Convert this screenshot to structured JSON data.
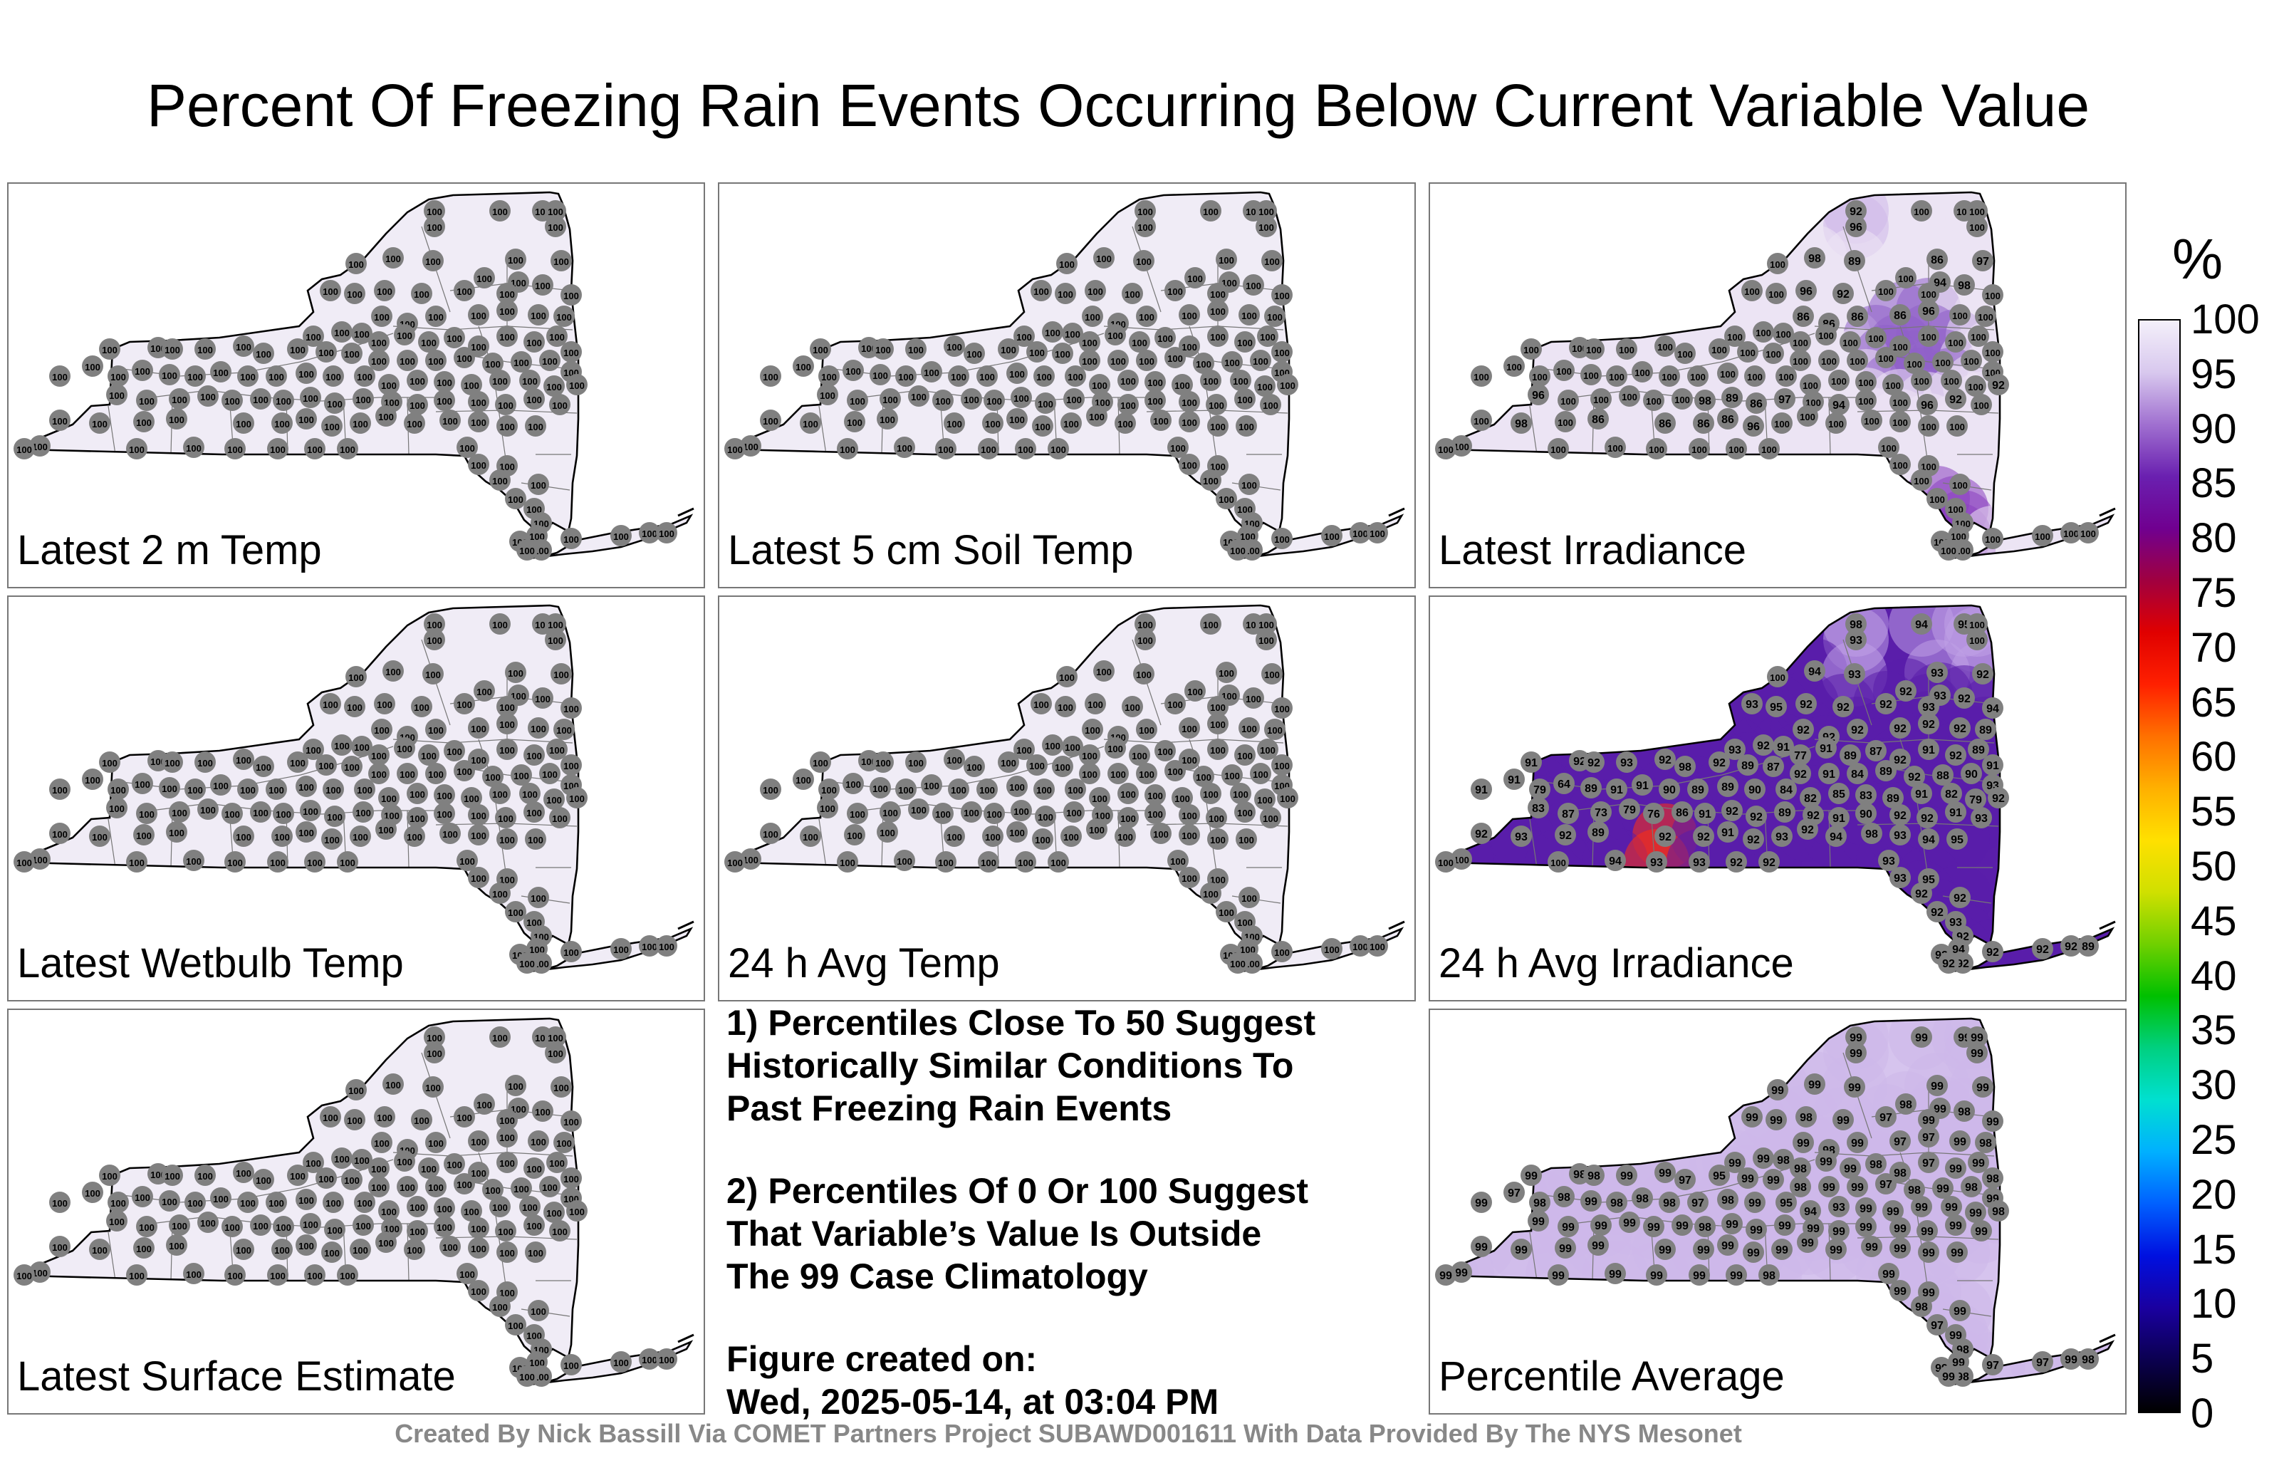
{
  "title": "Percent Of Freezing Rain Events Occurring Below Current Variable Value",
  "panels": [
    {
      "label": "Latest 2 m Temp",
      "shade": "uniform"
    },
    {
      "label": "Latest 5 cm Soil Temp",
      "shade": "uniform"
    },
    {
      "label": "Latest Irradiance",
      "shade": "irradiance"
    },
    {
      "label": "Latest Wetbulb Temp",
      "shade": "uniform"
    },
    {
      "label": "24 h Avg Temp",
      "shade": "uniform"
    },
    {
      "label": "24 h Avg Irradiance",
      "shade": "avg_irradiance"
    },
    {
      "label": "Latest Surface Estimate",
      "shade": "uniform"
    },
    {
      "label": "Percentile Average",
      "shade": "average"
    }
  ],
  "station_values": {
    "uniform": [
      "100"
    ],
    "irradiance": [
      "92",
      "96",
      "100",
      "100",
      "100",
      "100",
      "100",
      "98",
      "89",
      "86",
      "97",
      "100",
      "94",
      "100",
      "100",
      "96",
      "92",
      "100",
      "100",
      "98",
      "100",
      "86",
      "86",
      "86",
      "86",
      "96",
      "100",
      "100",
      "100",
      "100",
      "100",
      "100",
      "100",
      "100",
      "100",
      "100",
      "100",
      "100",
      "100",
      "100",
      "100",
      "100",
      "100",
      "100",
      "100",
      "100",
      "100",
      "100",
      "100",
      "100",
      "100",
      "100",
      "100",
      "100",
      "100",
      "100",
      "100",
      "100",
      "100",
      "100",
      "100",
      "100",
      "100",
      "100",
      "100",
      "100",
      "100",
      "100",
      "100",
      "100",
      "100",
      "100",
      "100",
      "100",
      "100",
      "100"
    ],
    "avg_irradiance": [
      "98",
      "93",
      "94",
      "95",
      "100",
      "100",
      "100",
      "94",
      "93",
      "93",
      "92",
      "92",
      "93",
      "93",
      "95",
      "92",
      "92",
      "92",
      "93",
      "92",
      "94",
      "92",
      "92",
      "92",
      "92",
      "92",
      "92",
      "89",
      "93",
      "92",
      "91",
      "77",
      "91",
      "89",
      "87",
      "92",
      "91",
      "92",
      "89",
      "91",
      "91",
      "92",
      "92",
      "93",
      "92",
      "98",
      "92",
      "89",
      "87",
      "92",
      "91",
      "84",
      "89",
      "92",
      "88",
      "90",
      "93",
      "91",
      "91",
      "79",
      "64",
      "89",
      "91",
      "91",
      "90",
      "89",
      "89",
      "90",
      "84",
      "82",
      "85",
      "83",
      "89",
      "91",
      "82",
      "79",
      "92",
      "83",
      "87",
      "73",
      "79",
      "76",
      "86",
      "91",
      "92",
      "92",
      "89",
      "92",
      "91",
      "90",
      "92",
      "92",
      "91",
      "93",
      "92",
      "93",
      "92",
      "89",
      "92",
      "92",
      "91",
      "92",
      "93",
      "92",
      "94"
    ],
    "average": [
      "99",
      "99",
      "99",
      "99",
      "99",
      "99",
      "99",
      "99",
      "99",
      "99",
      "99",
      "98",
      "99",
      "99",
      "99",
      "98",
      "99",
      "97",
      "99",
      "98",
      "99",
      "99",
      "98",
      "99",
      "97",
      "97",
      "99",
      "98",
      "99",
      "99",
      "98",
      "98",
      "99",
      "99",
      "98",
      "98",
      "97",
      "99",
      "99",
      "98",
      "99",
      "98",
      "98",
      "99",
      "99",
      "97",
      "95",
      "99",
      "99",
      "98",
      "99",
      "99",
      "97",
      "98",
      "99",
      "98",
      "99",
      "99",
      "97",
      "98",
      "98",
      "99",
      "98",
      "98",
      "98",
      "97",
      "98",
      "99",
      "95",
      "94",
      "93",
      "99",
      "99",
      "99",
      "99",
      "99",
      "98",
      "99",
      "99",
      "99",
      "99",
      "99",
      "99",
      "98",
      "99",
      "99",
      "99",
      "99",
      "99",
      "99",
      "99",
      "99",
      "99",
      "99",
      "99",
      "99",
      "99",
      "99",
      "99",
      "99",
      "99",
      "99",
      "99",
      "99",
      "99"
    ]
  },
  "notes": [
    "1) Percentiles Close To 50 Suggest\nHistorically Similar Conditions To\nPast Freezing Rain Events",
    "2) Percentiles Of 0 Or 100 Suggest\nThat Variable’s Value Is Outside\nThe 99 Case Climatology",
    "Figure created on:\nWed, 2025-05-14, at 03:04 PM"
  ],
  "credit": "Created By Nick Bassill Via COMET Partners Project SUBAWD001611 With Data Provided By The NYS Mesonet",
  "colorbar": {
    "unit": "%",
    "ticks": [
      "100",
      "95",
      "90",
      "85",
      "80",
      "75",
      "70",
      "65",
      "60",
      "55",
      "50",
      "45",
      "40",
      "35",
      "30",
      "25",
      "20",
      "15",
      "10",
      "5",
      "0"
    ],
    "colors": [
      "#000000",
      "#0b0050",
      "#1a00a0",
      "#0010e0",
      "#0060ff",
      "#00b0ff",
      "#00e0d0",
      "#00d080",
      "#00c000",
      "#70d000",
      "#d0e000",
      "#ffe000",
      "#ffb000",
      "#ff7000",
      "#ff2000",
      "#e00000",
      "#a00040",
      "#700090",
      "#6a20b0",
      "#a070d0",
      "#d8c8ee",
      "#f4f0fa"
    ],
    "map_fill_uniform": "#f0ecf6",
    "station_marker": "#808080"
  }
}
